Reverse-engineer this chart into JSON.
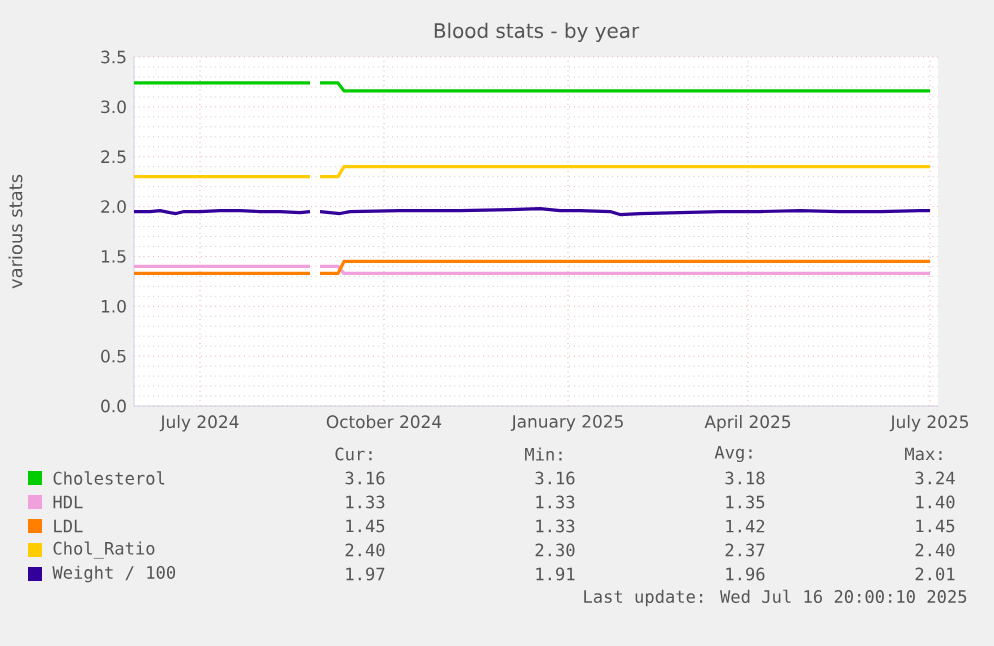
{
  "chart_data": {
    "type": "line",
    "title": "Blood stats - by year",
    "ylabel": "various stats",
    "xlim": [
      "2024-05-29",
      "2025-07-05"
    ],
    "xticks": [
      {
        "value": "2024-07-01",
        "label": "July 2024"
      },
      {
        "value": "2024-10-01",
        "label": "October 2024"
      },
      {
        "value": "2025-01-01",
        "label": "January 2025"
      },
      {
        "value": "2025-04-01",
        "label": "April 2025"
      },
      {
        "value": "2025-07-01",
        "label": "July 2025"
      }
    ],
    "ylim": [
      0,
      3.5
    ],
    "yticks": [
      {
        "value": 0,
        "label": "0.0"
      },
      {
        "value": 0.5,
        "label": "0.5"
      },
      {
        "value": 1,
        "label": "1.0"
      },
      {
        "value": 1.5,
        "label": "1.5"
      },
      {
        "value": 2,
        "label": "2.0"
      },
      {
        "value": 2.5,
        "label": "2.5"
      },
      {
        "value": 3,
        "label": "3.0"
      },
      {
        "value": 3.5,
        "label": "3.5"
      }
    ],
    "grid": true,
    "legend": "bottom",
    "series": [
      {
        "name": "Cholesterol",
        "color": "#00cc00",
        "x": [
          "2024-05-29",
          "2024-08-25",
          "2024-08-27",
          "2024-08-30",
          "2024-09-08",
          "2024-09-11",
          "2025-07-01"
        ],
        "values": [
          3.24,
          3.24,
          null,
          3.24,
          3.24,
          3.16,
          3.16
        ]
      },
      {
        "name": "HDL",
        "color": "#f0a0dc",
        "x": [
          "2024-05-29",
          "2024-08-25",
          "2024-08-27",
          "2024-08-30",
          "2024-09-08",
          "2024-09-11",
          "2025-07-01"
        ],
        "values": [
          1.4,
          1.4,
          null,
          1.4,
          1.4,
          1.33,
          1.33
        ]
      },
      {
        "name": "LDL",
        "color": "#ff8000",
        "x": [
          "2024-05-29",
          "2024-08-25",
          "2024-08-27",
          "2024-08-30",
          "2024-09-08",
          "2024-09-11",
          "2025-07-01"
        ],
        "values": [
          1.33,
          1.33,
          null,
          1.33,
          1.33,
          1.45,
          1.45
        ]
      },
      {
        "name": "Chol_Ratio",
        "color": "#ffcc00",
        "x": [
          "2024-05-29",
          "2024-08-25",
          "2024-08-27",
          "2024-08-30",
          "2024-09-08",
          "2024-09-11",
          "2025-07-01"
        ],
        "values": [
          2.3,
          2.3,
          null,
          2.3,
          2.3,
          2.4,
          2.4
        ]
      },
      {
        "name": "Weight / 100",
        "color": "#330099",
        "x": [
          "2024-05-29",
          "2024-06-06",
          "2024-06-11",
          "2024-06-16",
          "2024-06-19",
          "2024-06-23",
          "2024-07-01",
          "2024-07-11",
          "2024-07-21",
          "2024-07-31",
          "2024-08-10",
          "2024-08-20",
          "2024-08-25",
          "2024-08-27",
          "2024-08-30",
          "2024-09-09",
          "2024-09-14",
          "2024-10-09",
          "2024-10-24",
          "2024-11-08",
          "2024-12-03",
          "2024-12-18",
          "2024-12-28",
          "2025-01-07",
          "2025-01-22",
          "2025-01-27",
          "2025-02-06",
          "2025-02-26",
          "2025-03-18",
          "2025-04-07",
          "2025-04-27",
          "2025-05-17",
          "2025-06-06",
          "2025-06-26",
          "2025-07-01"
        ],
        "values": [
          1.95,
          1.95,
          1.96,
          1.94,
          1.93,
          1.95,
          1.95,
          1.96,
          1.96,
          1.95,
          1.95,
          1.94,
          1.95,
          null,
          1.95,
          1.93,
          1.95,
          1.96,
          1.96,
          1.96,
          1.97,
          1.98,
          1.96,
          1.96,
          1.95,
          1.92,
          1.93,
          1.94,
          1.95,
          1.95,
          1.96,
          1.95,
          1.95,
          1.96,
          1.96
        ]
      }
    ],
    "annotations": [
      "Cur:",
      "Min:",
      "Avg:",
      "Max:",
      "3.16",
      "3.16",
      "3.18",
      "3.24",
      "1.33",
      "1.33",
      "1.35",
      "1.40",
      "1.45",
      "1.33",
      "1.42",
      "1.45",
      "2.40",
      "2.30",
      "2.37",
      "2.40",
      "1.97",
      "1.91",
      "1.96",
      "2.01",
      "Last update: Wed Jul 16 20:00:10 2025"
    ]
  }
}
